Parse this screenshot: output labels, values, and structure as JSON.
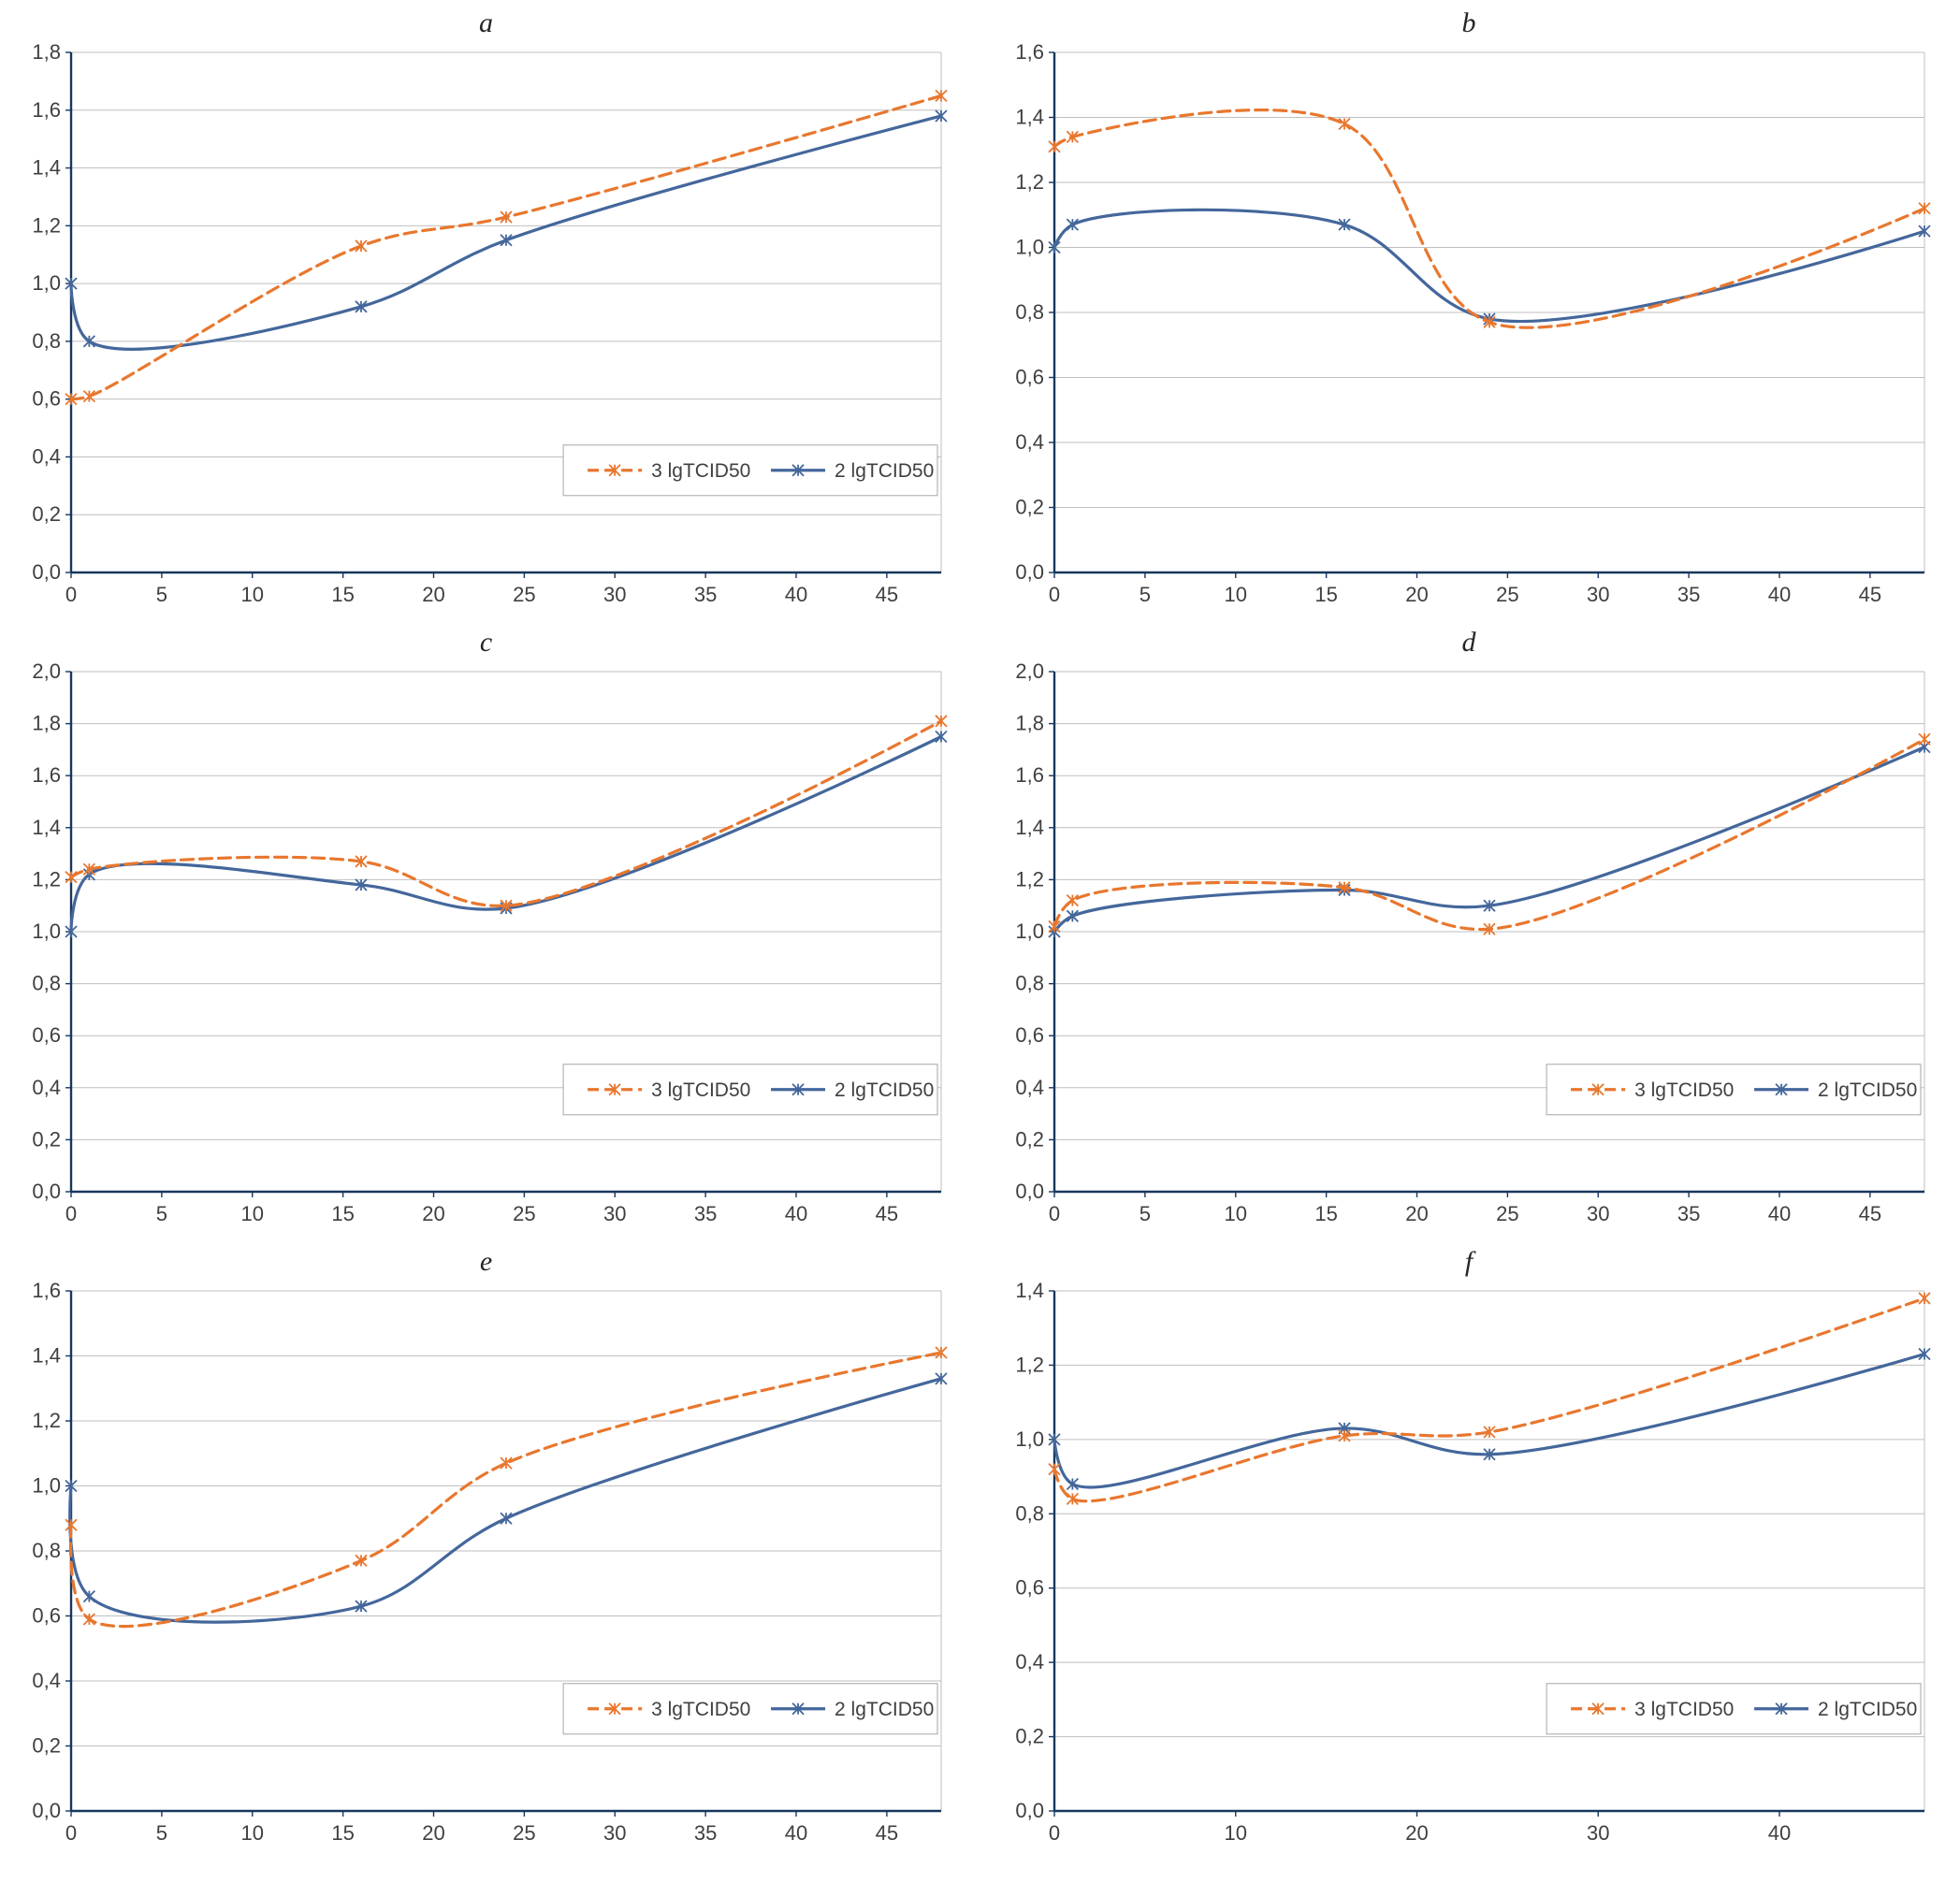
{
  "colors": {
    "series1": "#E8772E",
    "series2": "#44679B",
    "grid": "#BFBFBF",
    "axis": "#17375E",
    "tick_text": "#404040",
    "legend_border": "#A6A6A6",
    "background": "#FFFFFF"
  },
  "legend": {
    "series1_label": "3 lgTCID50",
    "series2_label": "2 lgTCID50"
  },
  "chart_data": [
    {
      "id": "a",
      "title": "a",
      "type": "line",
      "x": [
        0,
        1,
        16,
        24,
        48
      ],
      "xlim": [
        0,
        48
      ],
      "xticks": [
        0,
        5,
        10,
        15,
        20,
        25,
        30,
        35,
        40,
        45
      ],
      "ylim": [
        0,
        1.8
      ],
      "ystep": 0.2,
      "ytick_labels": [
        "0,0",
        "0,2",
        "0,4",
        "0,6",
        "0,8",
        "1,0",
        "1,2",
        "1,4",
        "1,6",
        "1,8"
      ],
      "series": [
        {
          "name": "3 lgTCID50",
          "style": "dashed",
          "values": [
            0.6,
            0.61,
            1.13,
            1.23,
            1.65
          ]
        },
        {
          "name": "2 lgTCID50",
          "style": "solid",
          "values": [
            1.0,
            0.8,
            0.92,
            1.15,
            1.58
          ]
        }
      ],
      "legend_visible": true,
      "grid": true,
      "legend_position": "lower-right"
    },
    {
      "id": "b",
      "title": "b",
      "type": "line",
      "x": [
        0,
        1,
        16,
        24,
        48
      ],
      "xlim": [
        0,
        48
      ],
      "xticks": [
        0,
        5,
        10,
        15,
        20,
        25,
        30,
        35,
        40,
        45
      ],
      "ylim": [
        0,
        1.6
      ],
      "ystep": 0.2,
      "ytick_labels": [
        "0,0",
        "0,2",
        "0,4",
        "0,6",
        "0,8",
        "1,0",
        "1,2",
        "1,4",
        "1,6"
      ],
      "series": [
        {
          "name": "3 lgTCID50",
          "style": "dashed",
          "values": [
            1.31,
            1.34,
            1.38,
            0.77,
            1.12
          ]
        },
        {
          "name": "2 lgTCID50",
          "style": "solid",
          "values": [
            1.0,
            1.07,
            1.07,
            0.78,
            1.05
          ]
        }
      ],
      "legend_visible": false,
      "grid": true,
      "legend_position": "none"
    },
    {
      "id": "c",
      "title": "c",
      "type": "line",
      "x": [
        0,
        1,
        16,
        24,
        48
      ],
      "xlim": [
        0,
        48
      ],
      "xticks": [
        0,
        5,
        10,
        15,
        20,
        25,
        30,
        35,
        40,
        45
      ],
      "ylim": [
        0,
        2.0
      ],
      "ystep": 0.2,
      "ytick_labels": [
        "0,0",
        "0,2",
        "0,4",
        "0,6",
        "0,8",
        "1,0",
        "1,2",
        "1,4",
        "1,6",
        "1,8",
        "2,0"
      ],
      "series": [
        {
          "name": "3 lgTCID50",
          "style": "dashed",
          "values": [
            1.21,
            1.24,
            1.27,
            1.1,
            1.81
          ]
        },
        {
          "name": "2 lgTCID50",
          "style": "solid",
          "values": [
            1.0,
            1.22,
            1.18,
            1.09,
            1.75
          ]
        }
      ],
      "legend_visible": true,
      "grid": true,
      "legend_position": "lower-right"
    },
    {
      "id": "d",
      "title": "d",
      "type": "line",
      "x": [
        0,
        1,
        16,
        24,
        48
      ],
      "xlim": [
        0,
        48
      ],
      "xticks": [
        0,
        5,
        10,
        15,
        20,
        25,
        30,
        35,
        40,
        45
      ],
      "ylim": [
        0,
        2.0
      ],
      "ystep": 0.2,
      "ytick_labels": [
        "0,0",
        "0,2",
        "0,4",
        "0,6",
        "0,8",
        "1,0",
        "1,2",
        "1,4",
        "1,6",
        "1,8",
        "2,0"
      ],
      "series": [
        {
          "name": "3 lgTCID50",
          "style": "dashed",
          "values": [
            1.02,
            1.12,
            1.17,
            1.01,
            1.74
          ]
        },
        {
          "name": "2 lgTCID50",
          "style": "solid",
          "values": [
            1.0,
            1.06,
            1.16,
            1.1,
            1.71
          ]
        }
      ],
      "legend_visible": true,
      "grid": true,
      "legend_position": "lower-right"
    },
    {
      "id": "e",
      "title": "e",
      "type": "line",
      "x": [
        0,
        1,
        16,
        24,
        48
      ],
      "xlim": [
        0,
        48
      ],
      "xticks": [
        0,
        5,
        10,
        15,
        20,
        25,
        30,
        35,
        40,
        45
      ],
      "ylim": [
        0,
        1.6
      ],
      "ystep": 0.2,
      "ytick_labels": [
        "0,0",
        "0,2",
        "0,4",
        "0,6",
        "0,8",
        "1,0",
        "1,2",
        "1,4",
        "1,6"
      ],
      "series": [
        {
          "name": "3 lgTCID50",
          "style": "dashed",
          "values": [
            0.88,
            0.59,
            0.77,
            1.07,
            1.41
          ]
        },
        {
          "name": "2 lgTCID50",
          "style": "solid",
          "values": [
            1.0,
            0.66,
            0.63,
            0.9,
            1.33
          ]
        }
      ],
      "legend_visible": true,
      "grid": true,
      "legend_position": "lower-right"
    },
    {
      "id": "f",
      "title": "f",
      "type": "line",
      "x": [
        0,
        1,
        16,
        24,
        48
      ],
      "xlim": [
        0,
        48
      ],
      "xticks": [
        0,
        10,
        20,
        30,
        40
      ],
      "ylim": [
        0,
        1.4
      ],
      "ystep": 0.2,
      "ytick_labels": [
        "0,0",
        "0,2",
        "0,4",
        "0,6",
        "0,8",
        "1,0",
        "1,2",
        "1,4"
      ],
      "series": [
        {
          "name": "3 lgTCID50",
          "style": "dashed",
          "values": [
            0.92,
            0.84,
            1.01,
            1.02,
            1.38
          ]
        },
        {
          "name": "2 lgTCID50",
          "style": "solid",
          "values": [
            1.0,
            0.88,
            1.03,
            0.96,
            1.23
          ]
        }
      ],
      "legend_visible": true,
      "grid": true,
      "legend_position": "lower-right"
    }
  ]
}
